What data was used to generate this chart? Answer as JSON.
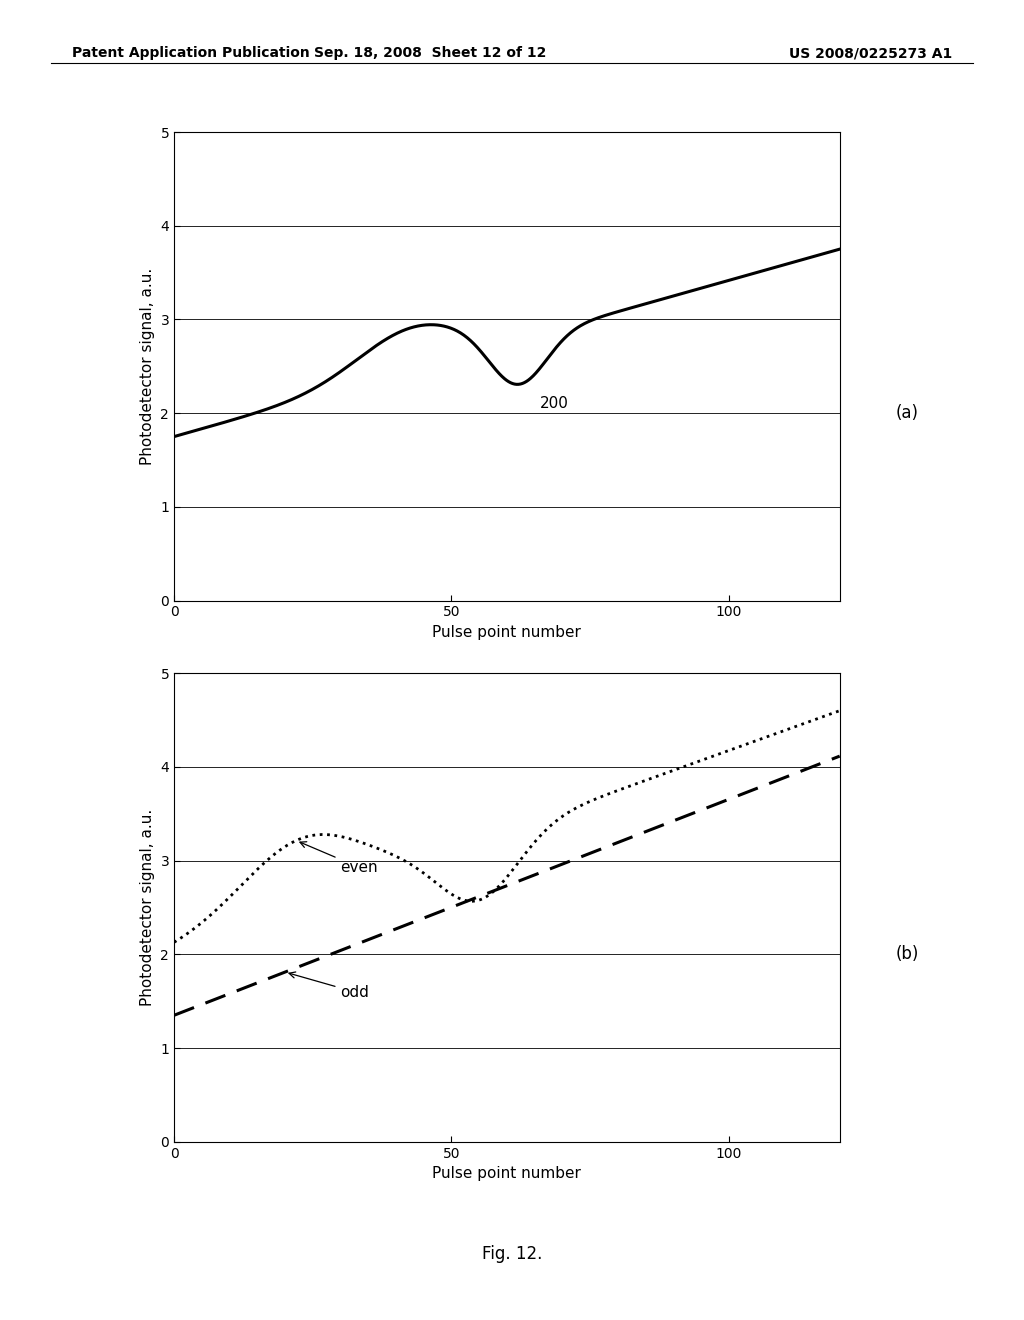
{
  "header_left": "Patent Application Publication",
  "header_center": "Sep. 18, 2008  Sheet 12 of 12",
  "header_right": "US 2008/0225273 A1",
  "xlabel": "Pulse point number",
  "ylabel": "Photodetector signal, a.u.",
  "ylim": [
    0,
    5
  ],
  "xlim": [
    0,
    120
  ],
  "yticks": [
    0,
    1,
    2,
    3,
    4,
    5
  ],
  "xticks": [
    0,
    50,
    100
  ],
  "label_a": "(a)",
  "label_b": "(b)",
  "fig_label": "Fig. 12.",
  "annotation_200": "200",
  "annotation_even": "even",
  "annotation_odd": "odd",
  "bg_color": "#ffffff",
  "line_color": "#000000"
}
